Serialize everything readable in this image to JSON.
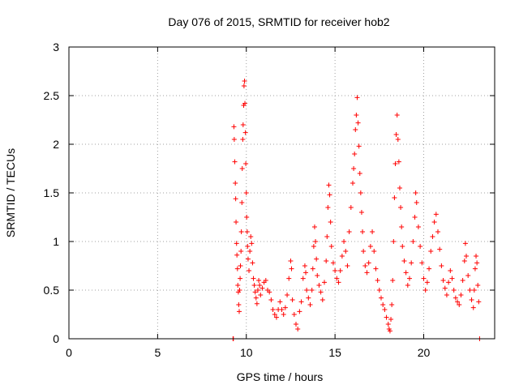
{
  "chart_data": {
    "type": "scatter",
    "title": "Day 076 of 2015, SRMTID for receiver hob2",
    "xlabel": "GPS time / hours",
    "ylabel": "SRMTID / TECUs",
    "xlim": [
      0,
      24
    ],
    "ylim": [
      0,
      3
    ],
    "xticks": [
      0,
      5,
      10,
      15,
      20
    ],
    "yticks": [
      0,
      0.5,
      1,
      1.5,
      2,
      2.5,
      3
    ],
    "xtick_labels": [
      "0",
      "5",
      "10",
      "15",
      "20"
    ],
    "ytick_labels": [
      "0",
      "0.5",
      "1",
      "1.5",
      "2",
      "2.5",
      "3"
    ],
    "grid": true,
    "marker": "+",
    "color": "#ff0000",
    "series": [
      {
        "name": "hob2",
        "points": [
          [
            9.25,
            0.0
          ],
          [
            9.27,
            0.0
          ],
          [
            9.3,
            2.18
          ],
          [
            9.32,
            2.05
          ],
          [
            9.35,
            1.82
          ],
          [
            9.38,
            1.6
          ],
          [
            9.4,
            1.44
          ],
          [
            9.42,
            1.2
          ],
          [
            9.45,
            0.98
          ],
          [
            9.47,
            0.86
          ],
          [
            9.5,
            0.72
          ],
          [
            9.52,
            0.55
          ],
          [
            9.55,
            0.48
          ],
          [
            9.57,
            0.35
          ],
          [
            9.6,
            0.28
          ],
          [
            9.62,
            0.5
          ],
          [
            9.65,
            0.62
          ],
          [
            9.67,
            0.75
          ],
          [
            9.7,
            0.9
          ],
          [
            9.72,
            1.1
          ],
          [
            9.75,
            1.4
          ],
          [
            9.77,
            1.75
          ],
          [
            9.8,
            2.05
          ],
          [
            9.82,
            2.2
          ],
          [
            9.85,
            2.4
          ],
          [
            9.87,
            2.6
          ],
          [
            9.9,
            2.65
          ],
          [
            9.92,
            2.42
          ],
          [
            9.95,
            2.12
          ],
          [
            9.97,
            1.8
          ],
          [
            10.0,
            1.5
          ],
          [
            10.02,
            1.25
          ],
          [
            10.05,
            1.1
          ],
          [
            10.07,
            0.95
          ],
          [
            10.1,
            0.82
          ],
          [
            10.15,
            0.7
          ],
          [
            10.2,
            0.9
          ],
          [
            10.25,
            1.05
          ],
          [
            10.3,
            0.98
          ],
          [
            10.35,
            0.78
          ],
          [
            10.4,
            0.62
          ],
          [
            10.45,
            0.55
          ],
          [
            10.5,
            0.48
          ],
          [
            10.55,
            0.42
          ],
          [
            10.6,
            0.36
          ],
          [
            10.65,
            0.5
          ],
          [
            10.7,
            0.6
          ],
          [
            10.75,
            0.55
          ],
          [
            10.8,
            0.45
          ],
          [
            10.9,
            0.52
          ],
          [
            11.0,
            0.58
          ],
          [
            11.1,
            0.6
          ],
          [
            11.2,
            0.5
          ],
          [
            11.3,
            0.48
          ],
          [
            11.4,
            0.4
          ],
          [
            11.5,
            0.3
          ],
          [
            11.6,
            0.25
          ],
          [
            11.7,
            0.22
          ],
          [
            11.8,
            0.3
          ],
          [
            11.9,
            0.38
          ],
          [
            12.0,
            0.3
          ],
          [
            12.1,
            0.25
          ],
          [
            12.2,
            0.32
          ],
          [
            12.3,
            0.45
          ],
          [
            12.4,
            0.62
          ],
          [
            12.5,
            0.8
          ],
          [
            12.55,
            0.72
          ],
          [
            12.6,
            0.4
          ],
          [
            12.7,
            0.25
          ],
          [
            12.8,
            0.15
          ],
          [
            12.9,
            0.1
          ],
          [
            13.0,
            0.28
          ],
          [
            13.1,
            0.38
          ],
          [
            13.2,
            0.62
          ],
          [
            13.3,
            0.75
          ],
          [
            13.35,
            0.68
          ],
          [
            13.4,
            0.5
          ],
          [
            13.5,
            0.42
          ],
          [
            13.6,
            0.35
          ],
          [
            13.7,
            0.5
          ],
          [
            13.75,
            0.72
          ],
          [
            13.8,
            0.95
          ],
          [
            13.85,
            1.15
          ],
          [
            13.9,
            1.0
          ],
          [
            13.95,
            0.82
          ],
          [
            14.0,
            0.65
          ],
          [
            14.1,
            0.55
          ],
          [
            14.2,
            0.48
          ],
          [
            14.3,
            0.4
          ],
          [
            14.4,
            0.58
          ],
          [
            14.5,
            0.8
          ],
          [
            14.55,
            1.05
          ],
          [
            14.6,
            1.35
          ],
          [
            14.65,
            1.58
          ],
          [
            14.7,
            1.48
          ],
          [
            14.75,
            1.2
          ],
          [
            14.8,
            0.95
          ],
          [
            14.9,
            0.78
          ],
          [
            15.0,
            0.7
          ],
          [
            15.1,
            0.62
          ],
          [
            15.2,
            0.58
          ],
          [
            15.3,
            0.7
          ],
          [
            15.4,
            0.85
          ],
          [
            15.5,
            1.0
          ],
          [
            15.6,
            0.9
          ],
          [
            15.7,
            0.75
          ],
          [
            15.8,
            1.1
          ],
          [
            15.9,
            1.35
          ],
          [
            16.0,
            1.6
          ],
          [
            16.05,
            1.75
          ],
          [
            16.1,
            1.9
          ],
          [
            16.15,
            2.15
          ],
          [
            16.2,
            2.3
          ],
          [
            16.25,
            2.48
          ],
          [
            16.3,
            2.22
          ],
          [
            16.35,
            1.98
          ],
          [
            16.4,
            1.7
          ],
          [
            16.45,
            1.5
          ],
          [
            16.5,
            1.3
          ],
          [
            16.55,
            1.1
          ],
          [
            16.6,
            0.9
          ],
          [
            16.7,
            0.75
          ],
          [
            16.8,
            0.68
          ],
          [
            16.9,
            0.78
          ],
          [
            17.0,
            0.95
          ],
          [
            17.1,
            1.1
          ],
          [
            17.2,
            0.9
          ],
          [
            17.3,
            0.72
          ],
          [
            17.4,
            0.6
          ],
          [
            17.5,
            0.5
          ],
          [
            17.6,
            0.42
          ],
          [
            17.7,
            0.35
          ],
          [
            17.8,
            0.3
          ],
          [
            17.9,
            0.22
          ],
          [
            18.0,
            0.15
          ],
          [
            18.05,
            0.1
          ],
          [
            18.1,
            0.08
          ],
          [
            18.15,
            0.2
          ],
          [
            18.2,
            0.35
          ],
          [
            18.25,
            0.6
          ],
          [
            18.3,
            1.0
          ],
          [
            18.35,
            1.45
          ],
          [
            18.4,
            1.8
          ],
          [
            18.45,
            2.1
          ],
          [
            18.5,
            2.3
          ],
          [
            18.55,
            2.05
          ],
          [
            18.6,
            1.82
          ],
          [
            18.65,
            1.55
          ],
          [
            18.7,
            1.35
          ],
          [
            18.75,
            1.15
          ],
          [
            18.8,
            0.95
          ],
          [
            18.9,
            0.8
          ],
          [
            19.0,
            0.68
          ],
          [
            19.1,
            0.55
          ],
          [
            19.2,
            0.62
          ],
          [
            19.3,
            0.78
          ],
          [
            19.4,
            1.0
          ],
          [
            19.5,
            1.25
          ],
          [
            19.55,
            1.5
          ],
          [
            19.6,
            1.4
          ],
          [
            19.7,
            1.15
          ],
          [
            19.8,
            0.95
          ],
          [
            19.9,
            0.78
          ],
          [
            20.0,
            0.62
          ],
          [
            20.1,
            0.5
          ],
          [
            20.2,
            0.58
          ],
          [
            20.3,
            0.72
          ],
          [
            20.4,
            0.9
          ],
          [
            20.5,
            1.05
          ],
          [
            20.6,
            1.2
          ],
          [
            20.7,
            1.28
          ],
          [
            20.8,
            1.1
          ],
          [
            20.9,
            0.92
          ],
          [
            21.0,
            0.75
          ],
          [
            21.1,
            0.6
          ],
          [
            21.2,
            0.52
          ],
          [
            21.3,
            0.45
          ],
          [
            21.4,
            0.58
          ],
          [
            21.5,
            0.7
          ],
          [
            21.6,
            0.62
          ],
          [
            21.7,
            0.5
          ],
          [
            21.8,
            0.42
          ],
          [
            21.9,
            0.38
          ],
          [
            22.0,
            0.35
          ],
          [
            22.1,
            0.45
          ],
          [
            22.2,
            0.6
          ],
          [
            22.3,
            0.8
          ],
          [
            22.35,
            0.98
          ],
          [
            22.4,
            0.85
          ],
          [
            22.5,
            0.65
          ],
          [
            22.6,
            0.5
          ],
          [
            22.7,
            0.4
          ],
          [
            22.8,
            0.32
          ],
          [
            22.85,
            0.5
          ],
          [
            22.9,
            0.72
          ],
          [
            22.95,
            0.85
          ],
          [
            23.0,
            0.78
          ],
          [
            23.05,
            0.55
          ],
          [
            23.1,
            0.38
          ],
          [
            23.15,
            0.0
          ]
        ]
      }
    ]
  }
}
